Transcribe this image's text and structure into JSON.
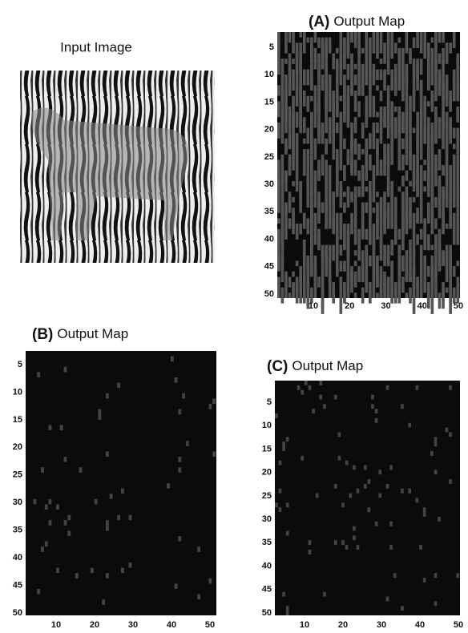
{
  "input_panel": {
    "title": "Input Image"
  },
  "panels": [
    {
      "label": "(A)",
      "title": "Output Map",
      "yticks": [
        5,
        10,
        15,
        20,
        25,
        30,
        35,
        40,
        45,
        50
      ],
      "xticks": [
        10,
        20,
        30,
        40,
        50
      ]
    },
    {
      "label": "(B)",
      "title": "Output Map",
      "yticks": [
        5,
        10,
        15,
        20,
        25,
        30,
        35,
        40,
        45,
        50
      ],
      "xticks": [
        10,
        20,
        30,
        40,
        50
      ]
    },
    {
      "label": "(C)",
      "title": "Output Map",
      "yticks": [
        5,
        10,
        15,
        20,
        25,
        30,
        35,
        40,
        45,
        50
      ],
      "xticks": [
        10,
        20,
        30,
        40,
        50
      ]
    }
  ]
}
